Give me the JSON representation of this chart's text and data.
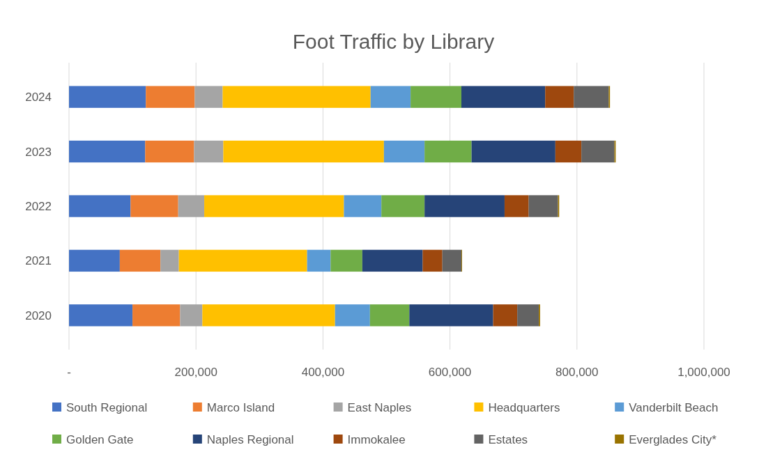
{
  "chart_data": {
    "type": "bar",
    "title": "Foot Traffic by Library",
    "orientation": "horizontal",
    "stacked": true,
    "categories": [
      "2024",
      "2023",
      "2022",
      "2021",
      "2020"
    ],
    "xlim": [
      0,
      1000000
    ],
    "xticks": [
      {
        "value": 0,
        "label": "-"
      },
      {
        "value": 200000,
        "label": "200,000"
      },
      {
        "value": 400000,
        "label": "400,000"
      },
      {
        "value": 600000,
        "label": "600,000"
      },
      {
        "value": 800000,
        "label": "800,000"
      },
      {
        "value": 1000000,
        "label": "1,000,000"
      }
    ],
    "grid": "x",
    "legend": "bottom",
    "series": [
      {
        "name": "South Regional",
        "color": "#4472c4",
        "values": [
          121000,
          120000,
          97000,
          80000,
          100000
        ]
      },
      {
        "name": "Marco Island",
        "color": "#ed7d31",
        "values": [
          77000,
          77000,
          75000,
          64000,
          75000
        ]
      },
      {
        "name": "East Naples",
        "color": "#a5a5a5",
        "values": [
          44000,
          46000,
          41000,
          29000,
          35000
        ]
      },
      {
        "name": "Headquarters",
        "color": "#ffc000",
        "values": [
          233000,
          253000,
          220000,
          202000,
          209000
        ]
      },
      {
        "name": "Vanderbilt Beach",
        "color": "#5b9bd5",
        "values": [
          63000,
          64000,
          59000,
          37000,
          55000
        ]
      },
      {
        "name": "Golden Gate",
        "color": "#70ad47",
        "values": [
          80000,
          74000,
          68000,
          50000,
          62000
        ]
      },
      {
        "name": "Naples Regional",
        "color": "#264478",
        "values": [
          132000,
          132000,
          126000,
          95000,
          132000
        ]
      },
      {
        "name": "Immokalee",
        "color": "#9e480e",
        "values": [
          45000,
          41000,
          38000,
          31000,
          38000
        ]
      },
      {
        "name": "Estates",
        "color": "#636363",
        "values": [
          55000,
          52000,
          46000,
          30000,
          34000
        ]
      },
      {
        "name": "Everglades City*",
        "color": "#997300",
        "values": [
          2000,
          2000,
          2000,
          1000,
          2000
        ]
      }
    ]
  }
}
